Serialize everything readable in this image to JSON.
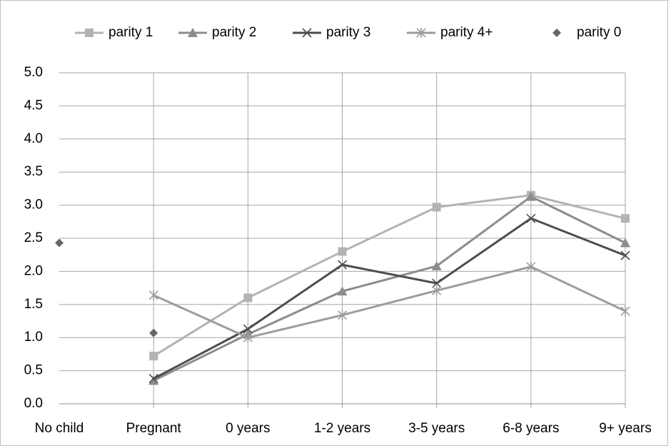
{
  "chart_data": {
    "type": "line",
    "categories": [
      "No child",
      "Pregnant",
      "0 years",
      "1-2 years",
      "3-5 years",
      "6-8 years",
      "9+ years"
    ],
    "series": [
      {
        "name": "parity 1",
        "color": "#b3b3b3",
        "marker": "square",
        "line": true,
        "values": [
          null,
          0.72,
          1.6,
          2.3,
          2.97,
          3.15,
          2.8
        ]
      },
      {
        "name": "parity 2",
        "color": "#8c8c8c",
        "marker": "triangle",
        "line": true,
        "values": [
          null,
          0.35,
          1.05,
          1.7,
          2.08,
          3.13,
          2.43
        ]
      },
      {
        "name": "parity 3",
        "color": "#4d4d4d",
        "marker": "x",
        "line": true,
        "values": [
          null,
          0.38,
          1.13,
          2.1,
          1.82,
          2.8,
          2.24
        ]
      },
      {
        "name": "parity 4+",
        "color": "#9c9c9c",
        "marker": "star",
        "line": true,
        "values": [
          null,
          1.64,
          1.0,
          1.34,
          1.71,
          2.07,
          1.4
        ]
      },
      {
        "name": "parity 0",
        "color": "#666666",
        "marker": "diamond",
        "line": false,
        "values": [
          2.43,
          1.07,
          null,
          null,
          null,
          null,
          null
        ]
      }
    ],
    "ylim": [
      0,
      5
    ],
    "yticks": [
      {
        "value": 0,
        "label": "0.0"
      },
      0.5,
      {
        "value": 1,
        "label": "1.0"
      },
      1.5,
      {
        "value": 2,
        "label": "2.0"
      },
      2.5,
      {
        "value": 3,
        "label": "3.0"
      },
      3.5,
      {
        "value": 4,
        "label": "4.0"
      },
      4.5,
      {
        "value": 5,
        "label": "5.0"
      }
    ],
    "grid": true,
    "legend": "top"
  }
}
